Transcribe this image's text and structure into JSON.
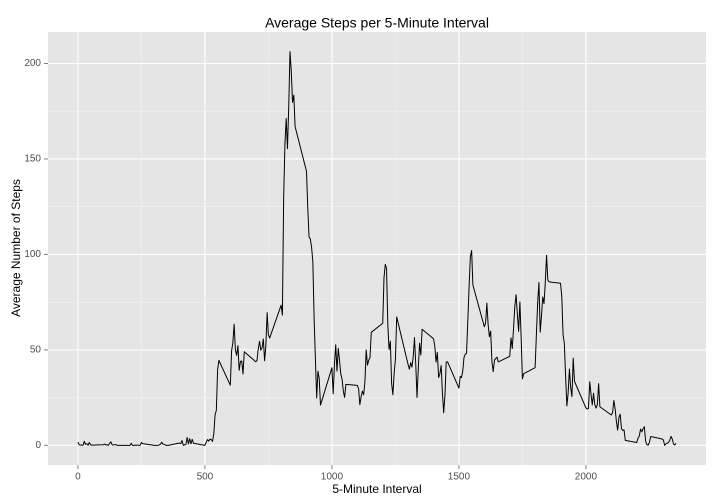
{
  "chart_data": {
    "type": "line",
    "title": "Average Steps per 5-Minute Interval",
    "x_label": "5-Minute Interval",
    "y_label": "Average Number of Steps",
    "x": [
      0,
      5,
      10,
      15,
      20,
      25,
      30,
      35,
      40,
      45,
      50,
      55,
      100,
      105,
      110,
      115,
      120,
      125,
      130,
      135,
      140,
      145,
      150,
      155,
      200,
      205,
      210,
      215,
      220,
      225,
      230,
      235,
      240,
      245,
      250,
      255,
      300,
      305,
      310,
      315,
      320,
      325,
      330,
      335,
      340,
      345,
      350,
      355,
      400,
      405,
      410,
      415,
      420,
      425,
      430,
      435,
      440,
      445,
      450,
      455,
      500,
      505,
      510,
      515,
      520,
      525,
      530,
      535,
      540,
      545,
      550,
      555,
      600,
      605,
      610,
      615,
      620,
      625,
      630,
      635,
      640,
      645,
      650,
      655,
      700,
      705,
      710,
      715,
      720,
      725,
      730,
      735,
      740,
      745,
      750,
      755,
      800,
      805,
      810,
      815,
      820,
      825,
      830,
      835,
      840,
      845,
      850,
      855,
      900,
      905,
      910,
      915,
      920,
      925,
      930,
      935,
      940,
      945,
      950,
      955,
      1000,
      1005,
      1010,
      1015,
      1020,
      1025,
      1030,
      1035,
      1040,
      1045,
      1050,
      1055,
      1100,
      1105,
      1110,
      1115,
      1120,
      1125,
      1130,
      1135,
      1140,
      1145,
      1150,
      1155,
      1200,
      1205,
      1210,
      1215,
      1220,
      1225,
      1230,
      1235,
      1240,
      1245,
      1250,
      1255,
      1300,
      1305,
      1310,
      1315,
      1320,
      1325,
      1330,
      1335,
      1340,
      1345,
      1350,
      1355,
      1400,
      1405,
      1410,
      1415,
      1420,
      1425,
      1430,
      1435,
      1440,
      1445,
      1450,
      1455,
      1500,
      1505,
      1510,
      1515,
      1520,
      1525,
      1530,
      1535,
      1540,
      1545,
      1550,
      1555,
      1600,
      1605,
      1610,
      1615,
      1620,
      1625,
      1630,
      1635,
      1640,
      1645,
      1650,
      1655,
      1700,
      1705,
      1710,
      1715,
      1720,
      1725,
      1730,
      1735,
      1740,
      1745,
      1750,
      1755,
      1800,
      1805,
      1810,
      1815,
      1820,
      1825,
      1830,
      1835,
      1840,
      1845,
      1850,
      1855,
      1900,
      1905,
      1910,
      1915,
      1920,
      1925,
      1930,
      1935,
      1940,
      1945,
      1950,
      1955,
      2000,
      2005,
      2010,
      2015,
      2020,
      2025,
      2030,
      2035,
      2040,
      2045,
      2050,
      2055,
      2100,
      2105,
      2110,
      2115,
      2120,
      2125,
      2130,
      2135,
      2140,
      2145,
      2150,
      2155,
      2200,
      2205,
      2210,
      2215,
      2220,
      2225,
      2230,
      2235,
      2240,
      2245,
      2250,
      2255,
      2300,
      2305,
      2310,
      2315,
      2320,
      2325,
      2330,
      2335,
      2340,
      2345,
      2350,
      2355
    ],
    "series": [
      {
        "color": "#000000",
        "values": [
          1.7,
          0.3,
          0.1,
          0.2,
          0,
          2.1,
          0.5,
          0.9,
          0,
          1.5,
          0.3,
          0.1,
          0.3,
          0.7,
          0.2,
          0.3,
          0,
          1.1,
          1.8,
          0.2,
          0.2,
          0.4,
          0.3,
          0,
          0,
          0,
          1.1,
          0,
          0,
          0.1,
          0,
          0.2,
          0,
          0,
          1.5,
          0.9,
          0,
          0,
          0,
          0,
          0.2,
          0.6,
          1.6,
          0.6,
          0.5,
          0.1,
          0,
          0,
          1.2,
          0.9,
          2.5,
          0,
          0.3,
          0.4,
          4.1,
          0.7,
          3.5,
          0.8,
          3.1,
          1.1,
          0,
          1.6,
          3,
          2.2,
          3.3,
          3,
          2.1,
          6.1,
          16,
          18.3,
          39.5,
          44.5,
          31.5,
          49.3,
          53.8,
          63.5,
          50,
          47.1,
          52.2,
          39.3,
          44,
          44.2,
          37.4,
          49,
          43.8,
          44.4,
          50.5,
          54.5,
          49.9,
          51,
          55.7,
          44.3,
          52.3,
          69.5,
          57.8,
          56.2,
          73.4,
          68.2,
          129.4,
          157.5,
          171.2,
          155.4,
          177.3,
          206.2,
          195.9,
          179.6,
          183.4,
          167,
          143.5,
          124,
          109.1,
          108.1,
          103.7,
          96,
          66.2,
          45.2,
          24.8,
          38.8,
          35,
          21.1,
          40.6,
          27,
          42.4,
          52.7,
          38.9,
          50.8,
          44.3,
          37.4,
          34.7,
          28.3,
          25.1,
          31.9,
          31.4,
          29.7,
          21.3,
          25.5,
          28.4,
          26.5,
          33.4,
          50,
          42,
          44.6,
          46,
          59.2,
          63.9,
          87.7,
          94.8,
          92.8,
          63.4,
          50.2,
          54.5,
          32.4,
          26.5,
          37.7,
          45.1,
          67.3,
          42.3,
          39.9,
          43.3,
          41,
          46.2,
          56.4,
          42.8,
          25.1,
          40,
          53.5,
          47.3,
          60.8,
          55.8,
          52,
          43.6,
          48.7,
          35.5,
          37.5,
          41.8,
          27.5,
          17.1,
          26.1,
          43.6,
          43.8,
          30,
          36.1,
          35.5,
          38.8,
          46,
          47.8,
          48.1,
          65.3,
          82.9,
          98.7,
          102.1,
          84,
          62.1,
          64.1,
          74.5,
          63.2,
          56.9,
          59.8,
          43.9,
          38.6,
          44.7,
          45.5,
          46.2,
          43.7,
          46.6,
          56.3,
          50.7,
          61.2,
          72.7,
          78.9,
          68.9,
          59.7,
          75.1,
          56.5,
          34.8,
          37.5,
          40.7,
          58,
          74.7,
          85.3,
          59.3,
          67.8,
          77.7,
          74.2,
          85.3,
          99.5,
          86.6,
          85.6,
          84.9,
          77.8,
          58,
          53.4,
          36.3,
          20.7,
          27.4,
          40,
          30.2,
          25.5,
          45.7,
          33.5,
          19.6,
          19,
          19.3,
          33.3,
          26.8,
          21.2,
          27.3,
          21.3,
          19.5,
          21.3,
          32.3,
          20.2,
          15.9,
          17.2,
          23.5,
          19.2,
          12.5,
          8,
          14.7,
          16.3,
          8.7,
          7.8,
          8.1,
          2.6,
          1.5,
          3.7,
          4.8,
          8.5,
          7.1,
          8.7,
          9.8,
          2.2,
          0.3,
          0.1,
          1.6,
          4.6,
          3.3,
          2.8,
          0,
          0.8,
          1,
          1.6,
          2.6,
          4.7,
          3.3,
          0.6,
          0.2,
          1.1
        ]
      }
    ],
    "xlim": [
      -117.75,
      2472.75
    ],
    "xticks": [
      0,
      500,
      1000,
      1500,
      2000
    ],
    "ylim": [
      -10.3,
      216.5
    ],
    "yticks": [
      0,
      50,
      100,
      150,
      200
    ],
    "grid": true
  }
}
